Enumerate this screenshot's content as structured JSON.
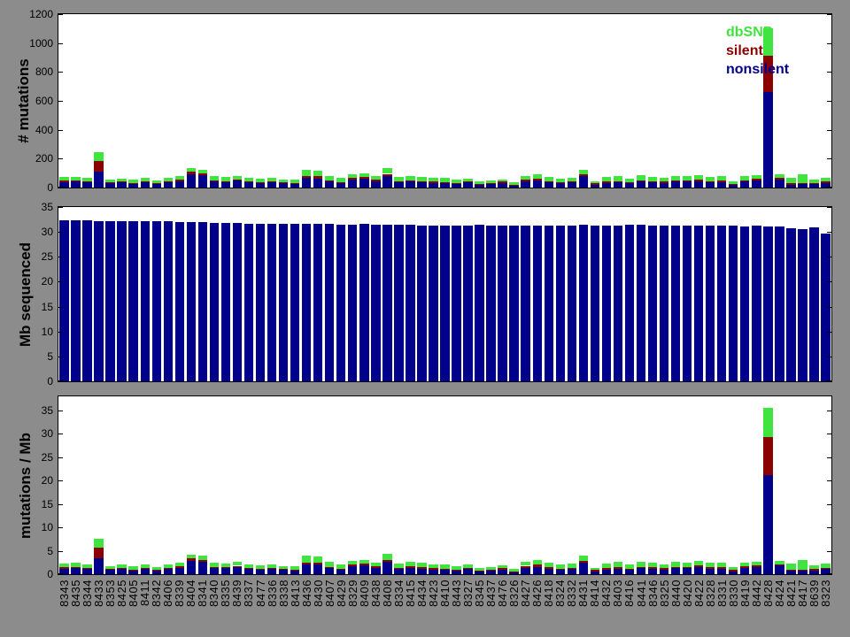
{
  "figure": {
    "background_color": "#8c8c8c",
    "plot_background": "#ffffff",
    "colors": {
      "nonsilent": "#00008B",
      "silent": "#8B0000",
      "dbSNP": "#3FE43F"
    }
  },
  "legend": {
    "position": "top-right-of-first-panel",
    "items": [
      {
        "label": "dbSNP",
        "color": "#3FE43F"
      },
      {
        "label": "silent",
        "color": "#8B0000"
      },
      {
        "label": "nonsilent",
        "color": "#00008B"
      }
    ]
  },
  "samples": [
    "8343",
    "8435",
    "8344",
    "8433",
    "8353",
    "8425",
    "8405",
    "8411",
    "8342",
    "8406",
    "8339",
    "8404",
    "8341",
    "8340",
    "8335",
    "8439",
    "8337",
    "8477",
    "8336",
    "8338",
    "8413",
    "8436",
    "8430",
    "8407",
    "8429",
    "8329",
    "8409",
    "8438",
    "8408",
    "8334",
    "8415",
    "8434",
    "8423",
    "8410",
    "8443",
    "8327",
    "8345",
    "8437",
    "8476",
    "8326",
    "8427",
    "8426",
    "8418",
    "8324",
    "8332",
    "8431",
    "8414",
    "8432",
    "8403",
    "8416",
    "8441",
    "8346",
    "8325",
    "8440",
    "8420",
    "8422",
    "8328",
    "8331",
    "8330",
    "8419",
    "8442",
    "8428",
    "8424",
    "8421",
    "8417",
    "8639",
    "8323"
  ],
  "chart_data": [
    {
      "type": "bar",
      "stacked": true,
      "ylabel": "# mutations",
      "ylim": [
        0,
        1200
      ],
      "yticks": [
        0,
        200,
        400,
        600,
        800,
        1000,
        1200
      ],
      "grid": false,
      "categories": "samples",
      "series": [
        {
          "name": "nonsilent",
          "color": "#00008B",
          "values": [
            38,
            44,
            36,
            111,
            30,
            34,
            26,
            38,
            24,
            36,
            46,
            91,
            87,
            44,
            40,
            48,
            34,
            32,
            36,
            28,
            26,
            65,
            62,
            40,
            28,
            55,
            61,
            44,
            81,
            36,
            44,
            36,
            32,
            28,
            26,
            34,
            18,
            24,
            32,
            14,
            44,
            50,
            36,
            28,
            34,
            77,
            20,
            30,
            36,
            28,
            42,
            36,
            30,
            40,
            40,
            46,
            36,
            38,
            18,
            42,
            48,
            660,
            55,
            20,
            22,
            24,
            32
          ]
        },
        {
          "name": "silent",
          "color": "#8B0000",
          "values": [
            10,
            6,
            6,
            71,
            6,
            6,
            6,
            6,
            6,
            8,
            8,
            20,
            12,
            6,
            6,
            9,
            6,
            6,
            6,
            6,
            6,
            12,
            16,
            10,
            8,
            10,
            10,
            11,
            14,
            8,
            8,
            8,
            8,
            8,
            6,
            6,
            6,
            6,
            8,
            6,
            11,
            11,
            8,
            8,
            8,
            14,
            8,
            10,
            8,
            8,
            10,
            8,
            10,
            8,
            10,
            11,
            8,
            10,
            8,
            10,
            13,
            255,
            10,
            8,
            8,
            8,
            8
          ]
        },
        {
          "name": "dbSNP",
          "color": "#3FE43F",
          "values": [
            23,
            25,
            23,
            64,
            21,
            21,
            21,
            21,
            18,
            21,
            23,
            26,
            26,
            27,
            25,
            24,
            25,
            23,
            23,
            23,
            23,
            45,
            40,
            31,
            29,
            26,
            30,
            22,
            42,
            27,
            29,
            27,
            25,
            29,
            25,
            21,
            16,
            20,
            17,
            16,
            26,
            30,
            27,
            25,
            28,
            30,
            16,
            31,
            33,
            25,
            33,
            27,
            25,
            33,
            27,
            28,
            27,
            29,
            18,
            25,
            24,
            190,
            26,
            37,
            65,
            25,
            25
          ]
        }
      ]
    },
    {
      "type": "bar",
      "stacked": false,
      "ylabel": "Mb sequenced",
      "ylim": [
        0,
        35
      ],
      "yticks": [
        0,
        5,
        10,
        15,
        20,
        25,
        30,
        35
      ],
      "grid": false,
      "categories": "samples",
      "series": [
        {
          "name": "Mb sequenced",
          "color": "#00008B",
          "values": [
            32.3,
            32.4,
            32.4,
            32.2,
            32.2,
            32.2,
            32.1,
            32.1,
            32.1,
            32.1,
            32.0,
            32.0,
            31.9,
            31.8,
            31.8,
            31.8,
            31.7,
            31.7,
            31.7,
            31.6,
            31.6,
            31.6,
            31.7,
            31.6,
            31.5,
            31.5,
            31.6,
            31.5,
            31.5,
            31.5,
            31.4,
            31.3,
            31.3,
            31.3,
            31.3,
            31.3,
            31.4,
            31.3,
            31.2,
            31.3,
            31.3,
            31.3,
            31.2,
            31.3,
            31.2,
            31.4,
            31.2,
            31.3,
            31.3,
            31.4,
            31.4,
            31.3,
            31.3,
            31.3,
            31.3,
            31.2,
            31.2,
            31.2,
            31.2,
            31.1,
            31.2,
            31.1,
            31.1,
            30.7,
            30.6,
            30.9,
            29.7
          ]
        }
      ]
    },
    {
      "type": "bar",
      "stacked": true,
      "ylabel": "mutations / Mb",
      "ylim": [
        0,
        38
      ],
      "yticks": [
        0,
        5,
        10,
        15,
        20,
        25,
        30,
        35
      ],
      "grid": false,
      "categories": "samples",
      "series": [
        {
          "name": "nonsilent",
          "color": "#00008B",
          "values": [
            1.2,
            1.4,
            1.1,
            3.4,
            0.9,
            1.1,
            0.8,
            1.2,
            0.7,
            1.1,
            1.4,
            2.8,
            2.7,
            1.4,
            1.3,
            1.5,
            1.1,
            1.0,
            1.1,
            0.9,
            0.8,
            2.1,
            2.0,
            1.3,
            0.9,
            1.7,
            1.9,
            1.4,
            2.6,
            1.1,
            1.4,
            1.2,
            1.0,
            0.9,
            0.8,
            1.1,
            0.6,
            0.8,
            1.0,
            0.4,
            1.4,
            1.6,
            1.2,
            0.9,
            1.1,
            2.5,
            0.6,
            1.0,
            1.2,
            0.9,
            1.3,
            1.2,
            1.0,
            1.3,
            1.3,
            1.5,
            1.2,
            1.2,
            0.6,
            1.4,
            1.5,
            21.2,
            1.8,
            0.7,
            0.7,
            0.8,
            1.1
          ]
        },
        {
          "name": "silent",
          "color": "#8B0000",
          "values": [
            0.3,
            0.2,
            0.2,
            2.2,
            0.2,
            0.2,
            0.2,
            0.2,
            0.2,
            0.2,
            0.3,
            0.6,
            0.4,
            0.2,
            0.2,
            0.3,
            0.2,
            0.2,
            0.2,
            0.2,
            0.2,
            0.4,
            0.5,
            0.3,
            0.3,
            0.3,
            0.3,
            0.3,
            0.4,
            0.3,
            0.3,
            0.3,
            0.3,
            0.3,
            0.2,
            0.2,
            0.2,
            0.2,
            0.3,
            0.2,
            0.4,
            0.4,
            0.3,
            0.3,
            0.3,
            0.4,
            0.3,
            0.3,
            0.3,
            0.3,
            0.3,
            0.3,
            0.3,
            0.3,
            0.3,
            0.4,
            0.3,
            0.3,
            0.3,
            0.3,
            0.4,
            8.2,
            0.3,
            0.3,
            0.3,
            0.3,
            0.3
          ]
        },
        {
          "name": "dbSNP",
          "color": "#3FE43F",
          "values": [
            0.7,
            0.8,
            0.7,
            2.0,
            0.7,
            0.7,
            0.7,
            0.7,
            0.6,
            0.7,
            0.7,
            0.8,
            0.8,
            0.8,
            0.8,
            0.8,
            0.8,
            0.7,
            0.7,
            0.7,
            0.7,
            1.4,
            1.3,
            1.0,
            0.9,
            0.8,
            0.9,
            0.7,
            1.3,
            0.9,
            0.9,
            0.9,
            0.8,
            0.9,
            0.8,
            0.7,
            0.5,
            0.6,
            0.5,
            0.5,
            0.8,
            1.0,
            0.9,
            0.8,
            0.9,
            1.0,
            0.5,
            1.0,
            1.1,
            0.8,
            1.1,
            0.9,
            0.8,
            1.1,
            0.9,
            0.9,
            0.9,
            0.9,
            0.6,
            0.8,
            0.8,
            6.1,
            0.8,
            1.2,
            2.1,
            0.8,
            0.8
          ]
        }
      ]
    }
  ]
}
